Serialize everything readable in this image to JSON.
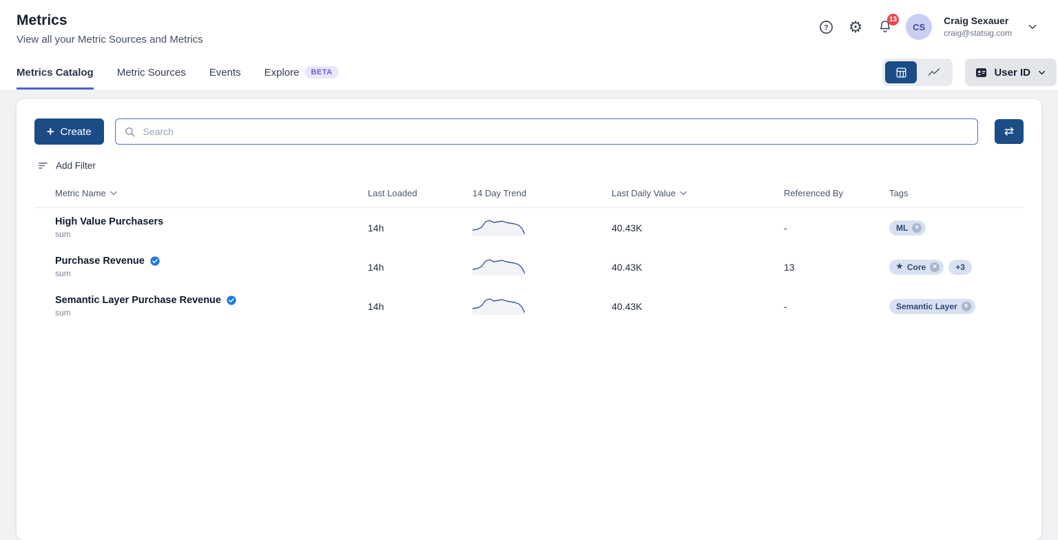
{
  "header": {
    "title": "Metrics",
    "subtitle": "View all your Metric Sources and Metrics",
    "notification_count": "13",
    "user": {
      "initials": "CS",
      "name": "Craig Sexauer",
      "email": "craig@statsig.com"
    }
  },
  "tabs": [
    {
      "label": "Metrics Catalog"
    },
    {
      "label": "Metric Sources"
    },
    {
      "label": "Events"
    },
    {
      "label": "Explore",
      "badge": "BETA"
    }
  ],
  "view_controls": {
    "unit_label": "User ID"
  },
  "toolbar": {
    "create_label": "Create",
    "search_placeholder": "Search",
    "add_filter_label": "Add Filter"
  },
  "table": {
    "columns": [
      "Metric Name",
      "Last Loaded",
      "14 Day Trend",
      "Last Daily Value",
      "Referenced By",
      "Tags"
    ],
    "rows": [
      {
        "name": "High Value Purchasers",
        "type": "sum",
        "verified": false,
        "last_loaded": "14h",
        "last_daily_value": "40.43K",
        "referenced_by": "-",
        "tags": [
          {
            "label": "ML"
          }
        ]
      },
      {
        "name": "Purchase Revenue",
        "type": "sum",
        "verified": true,
        "last_loaded": "14h",
        "last_daily_value": "40.43K",
        "referenced_by": "13",
        "tags": [
          {
            "label": "Core",
            "starred": true
          },
          {
            "label": "+3",
            "overflow": true
          }
        ]
      },
      {
        "name": "Semantic Layer Purchase Revenue",
        "type": "sum",
        "verified": true,
        "last_loaded": "14h",
        "last_daily_value": "40.43K",
        "referenced_by": "-",
        "tags": [
          {
            "label": "Semantic Layer"
          }
        ]
      }
    ]
  },
  "sparkline": {
    "width": 76,
    "height": 30,
    "points": [
      [
        0,
        21
      ],
      [
        7,
        20
      ],
      [
        13,
        17
      ],
      [
        19,
        9
      ],
      [
        25,
        7
      ],
      [
        31,
        10
      ],
      [
        37,
        9
      ],
      [
        43,
        8
      ],
      [
        49,
        10
      ],
      [
        55,
        11
      ],
      [
        61,
        12
      ],
      [
        67,
        14
      ],
      [
        72,
        19
      ],
      [
        76,
        27
      ]
    ]
  },
  "icons": {
    "plus": "+",
    "gear": "⚙",
    "swap": "⇄",
    "close": "×",
    "star": "★"
  },
  "colors": {
    "accent": "#1b4c86",
    "tab_underline": "#4c5fd5",
    "beta_bg": "#eae6fb",
    "beta_text": "#6f5bd8",
    "badge_red": "#e5484d",
    "tag_bg": "#d9e1f1",
    "tag_text": "#2c4875",
    "sparkline": "#3a5a8c",
    "search_border": "#4b6fd6",
    "verified": "#1f7ae0",
    "avatar_bg": "#c9cff2",
    "avatar_text": "#41488f",
    "page_bg": "#f1f2f4"
  }
}
